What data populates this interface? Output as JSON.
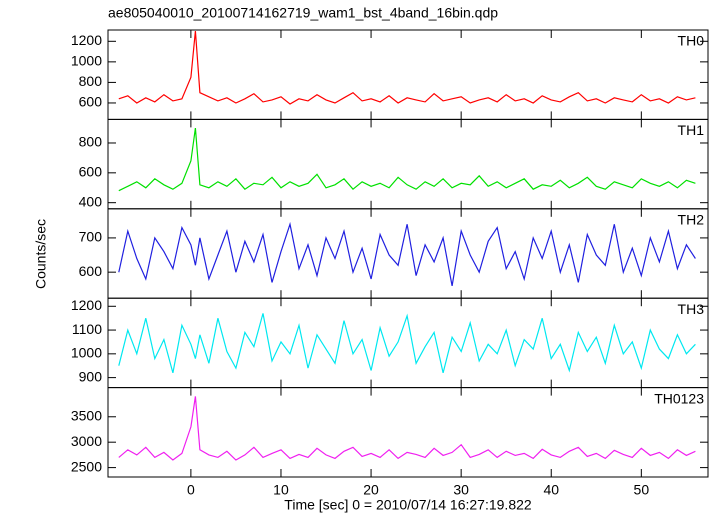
{
  "chart_data": [
    {
      "type": "line",
      "title": "ae805040010_20100714162719_wam1_bst_4band_16bin.qdp",
      "x": [
        -8,
        -7,
        -6,
        -5,
        -4,
        -3,
        -2,
        -1,
        0,
        0.5,
        1,
        2,
        3,
        4,
        5,
        6,
        7,
        8,
        9,
        10,
        11,
        12,
        13,
        14,
        15,
        16,
        17,
        18,
        19,
        20,
        21,
        22,
        23,
        24,
        25,
        26,
        27,
        28,
        29,
        30,
        31,
        32,
        33,
        34,
        35,
        36,
        37,
        38,
        39,
        40,
        41,
        42,
        43,
        44,
        45,
        46,
        47,
        48,
        49,
        50,
        51,
        52,
        53,
        54,
        55,
        56
      ],
      "series": [
        {
          "name": "TH0",
          "color": "#ff0000",
          "values": [
            640,
            670,
            600,
            650,
            610,
            680,
            620,
            640,
            850,
            1300,
            700,
            660,
            620,
            650,
            600,
            640,
            690,
            610,
            630,
            660,
            590,
            640,
            620,
            680,
            630,
            600,
            650,
            700,
            620,
            640,
            610,
            670,
            600,
            650,
            630,
            610,
            690,
            620,
            640,
            660,
            600,
            630,
            650,
            610,
            680,
            620,
            640,
            600,
            670,
            630,
            610,
            660,
            700,
            620,
            640,
            600,
            650,
            630,
            610,
            680,
            620,
            640,
            600,
            660,
            630,
            650
          ]
        }
      ],
      "xlim": [
        -9.2,
        57.4
      ],
      "ylim": [
        440,
        1310
      ],
      "yticks": [
        600,
        800,
        1000,
        1200
      ]
    },
    {
      "type": "line",
      "x": [
        -8,
        -7,
        -6,
        -5,
        -4,
        -3,
        -2,
        -1,
        0,
        0.5,
        1,
        2,
        3,
        4,
        5,
        6,
        7,
        8,
        9,
        10,
        11,
        12,
        13,
        14,
        15,
        16,
        17,
        18,
        19,
        20,
        21,
        22,
        23,
        24,
        25,
        26,
        27,
        28,
        29,
        30,
        31,
        32,
        33,
        34,
        35,
        36,
        37,
        38,
        39,
        40,
        41,
        42,
        43,
        44,
        45,
        46,
        47,
        48,
        49,
        50,
        51,
        52,
        53,
        54,
        55,
        56
      ],
      "series": [
        {
          "name": "TH1",
          "color": "#00e000",
          "values": [
            480,
            510,
            540,
            500,
            560,
            520,
            490,
            530,
            680,
            900,
            520,
            500,
            540,
            510,
            560,
            490,
            530,
            520,
            570,
            500,
            540,
            510,
            530,
            590,
            500,
            520,
            560,
            490,
            540,
            510,
            530,
            500,
            570,
            520,
            490,
            540,
            510,
            560,
            500,
            530,
            520,
            580,
            510,
            540,
            500,
            530,
            560,
            490,
            520,
            510,
            550,
            500,
            530,
            570,
            510,
            490,
            540,
            520,
            500,
            560,
            530,
            510,
            540,
            500,
            550,
            530
          ]
        }
      ],
      "xlim": [
        -9.2,
        57.4
      ],
      "ylim": [
        359,
        958
      ],
      "yticks": [
        400,
        600,
        800
      ]
    },
    {
      "type": "line",
      "ylabel": "Counts/sec",
      "x": [
        -8,
        -7,
        -6,
        -5,
        -4,
        -3,
        -2,
        -1,
        0,
        0.5,
        1,
        2,
        3,
        4,
        5,
        6,
        7,
        8,
        9,
        10,
        11,
        12,
        13,
        14,
        15,
        16,
        17,
        18,
        19,
        20,
        21,
        22,
        23,
        24,
        25,
        26,
        27,
        28,
        29,
        30,
        31,
        32,
        33,
        34,
        35,
        36,
        37,
        38,
        39,
        40,
        41,
        42,
        43,
        44,
        45,
        46,
        47,
        48,
        49,
        50,
        51,
        52,
        53,
        54,
        55,
        56
      ],
      "series": [
        {
          "name": "TH2",
          "color": "#2020e0",
          "values": [
            600,
            720,
            640,
            580,
            700,
            660,
            610,
            730,
            680,
            620,
            700,
            580,
            650,
            720,
            600,
            690,
            630,
            710,
            570,
            660,
            740,
            610,
            680,
            590,
            700,
            640,
            720,
            600,
            670,
            580,
            710,
            650,
            620,
            740,
            590,
            680,
            630,
            700,
            560,
            720,
            650,
            600,
            690,
            730,
            610,
            660,
            580,
            700,
            640,
            720,
            600,
            680,
            570,
            710,
            650,
            620,
            740,
            600,
            670,
            590,
            700,
            630,
            720,
            610,
            680,
            640
          ]
        }
      ],
      "xlim": [
        -9.2,
        57.4
      ],
      "ylim": [
        524,
        785
      ],
      "yticks": [
        600,
        700
      ]
    },
    {
      "type": "line",
      "x": [
        -8,
        -7,
        -6,
        -5,
        -4,
        -3,
        -2,
        -1,
        0,
        0.5,
        1,
        2,
        3,
        4,
        5,
        6,
        7,
        8,
        9,
        10,
        11,
        12,
        13,
        14,
        15,
        16,
        17,
        18,
        19,
        20,
        21,
        22,
        23,
        24,
        25,
        26,
        27,
        28,
        29,
        30,
        31,
        32,
        33,
        34,
        35,
        36,
        37,
        38,
        39,
        40,
        41,
        42,
        43,
        44,
        45,
        46,
        47,
        48,
        49,
        50,
        51,
        52,
        53,
        54,
        55,
        56
      ],
      "series": [
        {
          "name": "TH3",
          "color": "#00e8f0",
          "values": [
            950,
            1100,
            1000,
            1150,
            980,
            1060,
            920,
            1120,
            1040,
            980,
            1080,
            960,
            1150,
            1010,
            940,
            1090,
            1030,
            1170,
            970,
            1050,
            1000,
            1120,
            940,
            1080,
            1020,
            960,
            1140,
            1000,
            1060,
            930,
            1110,
            990,
            1050,
            1160,
            960,
            1030,
            1090,
            920,
            1070,
            1010,
            1130,
            970,
            1040,
            1000,
            1100,
            950,
            1060,
            1020,
            1150,
            980,
            1040,
            930,
            1090,
            1010,
            1070,
            960,
            1120,
            1000,
            1050,
            940,
            1100,
            1020,
            980,
            1080,
            1000,
            1040
          ]
        }
      ],
      "xlim": [
        -9.2,
        57.4
      ],
      "ylim": [
        858,
        1234
      ],
      "yticks": [
        900,
        1000,
        1100,
        1200
      ]
    },
    {
      "type": "line",
      "xlabel": "Time [sec] 0 = 2010/07/14 16:27:19.822",
      "x": [
        -8,
        -7,
        -6,
        -5,
        -4,
        -3,
        -2,
        -1,
        0,
        0.5,
        1,
        2,
        3,
        4,
        5,
        6,
        7,
        8,
        9,
        10,
        11,
        12,
        13,
        14,
        15,
        16,
        17,
        18,
        19,
        20,
        21,
        22,
        23,
        24,
        25,
        26,
        27,
        28,
        29,
        30,
        31,
        32,
        33,
        34,
        35,
        36,
        37,
        38,
        39,
        40,
        41,
        42,
        43,
        44,
        45,
        46,
        47,
        48,
        49,
        50,
        51,
        52,
        53,
        54,
        55,
        56
      ],
      "series": [
        {
          "name": "TH0123",
          "color": "#f020f0",
          "values": [
            2700,
            2850,
            2750,
            2900,
            2700,
            2800,
            2650,
            2780,
            3300,
            3900,
            2850,
            2750,
            2700,
            2820,
            2650,
            2750,
            2900,
            2700,
            2780,
            2850,
            2680,
            2760,
            2700,
            2880,
            2750,
            2680,
            2820,
            2900,
            2720,
            2780,
            2700,
            2850,
            2680,
            2800,
            2760,
            2700,
            2880,
            2740,
            2800,
            2950,
            2700,
            2760,
            2850,
            2700,
            2820,
            2740,
            2780,
            2680,
            2860,
            2750,
            2700,
            2820,
            2900,
            2720,
            2780,
            2680,
            2840,
            2760,
            2700,
            2880,
            2740,
            2800,
            2680,
            2850,
            2740,
            2820
          ]
        }
      ],
      "xlim": [
        -9.2,
        57.4
      ],
      "ylim": [
        2315,
        4074
      ],
      "yticks": [
        2500,
        3000,
        3500
      ],
      "xticks": [
        0,
        10,
        20,
        30,
        40,
        50
      ]
    }
  ]
}
